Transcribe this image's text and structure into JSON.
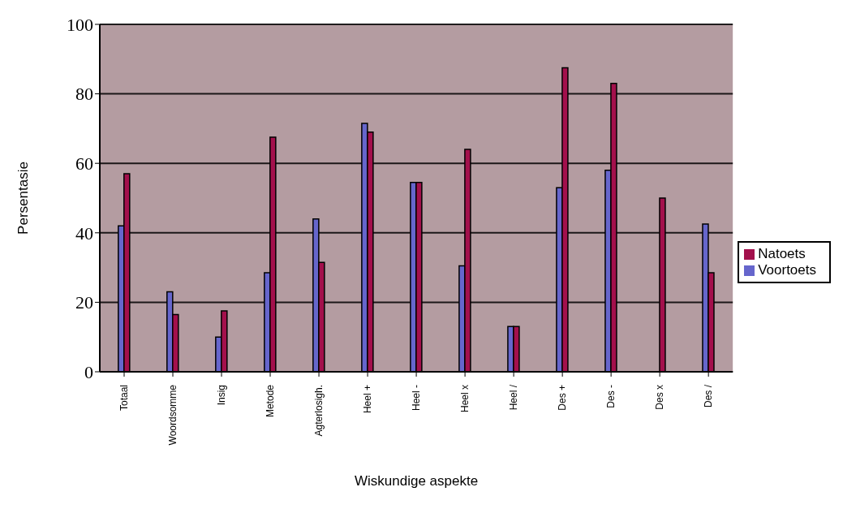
{
  "chart_data": {
    "type": "bar",
    "xlabel": "Wiskundige aspekte",
    "ylabel": "Persentasie",
    "categories": [
      "Totaal",
      "Woordsomme",
      "Insig",
      "Metode",
      "Agterlosigh.",
      "Heel +",
      "Heel -",
      "Heel x",
      "Heel /",
      "Des +",
      "Des -",
      "Des x",
      "Des /"
    ],
    "series": [
      {
        "name": "Voortoets",
        "color": "#6666cc",
        "values": [
          42,
          23,
          10,
          28.5,
          44,
          71.5,
          54.5,
          30.5,
          13,
          53,
          58,
          0,
          42.5
        ]
      },
      {
        "name": "Natoets",
        "color": "#a3104c",
        "values": [
          57,
          16.5,
          17.5,
          67.5,
          31.5,
          69,
          54.5,
          64,
          13,
          87.5,
          83,
          50,
          28.5
        ]
      }
    ],
    "ylim": [
      0,
      100
    ],
    "yticks": [
      0,
      20,
      40,
      60,
      80,
      100
    ],
    "grid": "y",
    "legend": "right"
  }
}
